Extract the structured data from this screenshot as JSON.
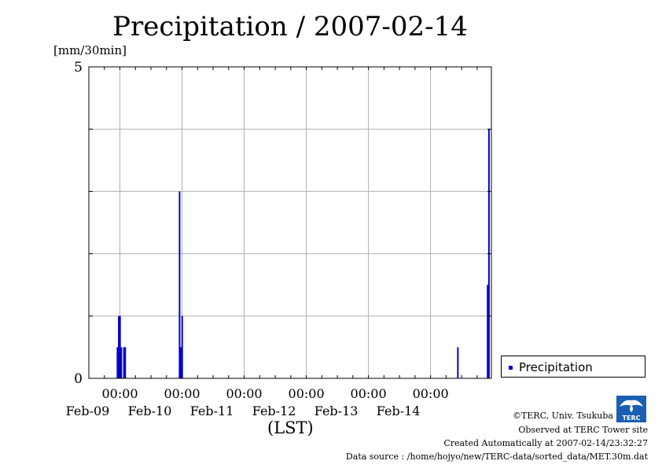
{
  "chart_data": {
    "type": "bar",
    "title": "Precipitation / 2007-02-14",
    "ylabel_unit": "[mm/30min]",
    "xlabel": "(LST)",
    "ylim": [
      0,
      5
    ],
    "y_ticks": [
      0,
      5
    ],
    "y_grid": [
      1,
      2,
      3,
      4
    ],
    "x_range_days": [
      "2007-02-08T12:00",
      "2007-02-14T23:30"
    ],
    "x_ticks": [
      {
        "time": "00:00",
        "date": "Feb-09"
      },
      {
        "time": "00:00",
        "date": "Feb-10"
      },
      {
        "time": "00:00",
        "date": "Feb-11"
      },
      {
        "time": "00:00",
        "date": "Feb-12"
      },
      {
        "time": "00:00",
        "date": "Feb-13"
      },
      {
        "time": "00:00",
        "date": "Feb-14"
      }
    ],
    "series": [
      {
        "name": "Precipitation",
        "color": "#0000cc",
        "points": [
          {
            "t": "2007-02-08T23:00",
            "v": 0.5
          },
          {
            "t": "2007-02-08T23:30",
            "v": 1.0
          },
          {
            "t": "2007-02-09T00:00",
            "v": 1.0
          },
          {
            "t": "2007-02-09T00:30",
            "v": 0.5
          },
          {
            "t": "2007-02-09T01:30",
            "v": 0.5
          },
          {
            "t": "2007-02-09T02:00",
            "v": 0.5
          },
          {
            "t": "2007-02-09T23:00",
            "v": 3.0
          },
          {
            "t": "2007-02-09T23:30",
            "v": 0.5
          },
          {
            "t": "2007-02-10T00:00",
            "v": 1.0
          },
          {
            "t": "2007-02-14T10:30",
            "v": 0.5
          },
          {
            "t": "2007-02-14T22:00",
            "v": 1.5
          },
          {
            "t": "2007-02-14T22:30",
            "v": 4.0
          }
        ]
      }
    ],
    "legend": {
      "label": "Precipitation",
      "placement": "right"
    }
  },
  "credits": {
    "line1": "©TERC, Univ. Tsukuba",
    "line2": "Observed at TERC Tower site",
    "line3": "Created Automatically at 2007-02-14/23:32:27",
    "line4": "Data source : /home/hojyo/new/TERC-data/sorted_data/MET.30m.dat"
  },
  "logo": {
    "text": "TERC",
    "icon": "terc-logo-icon"
  }
}
